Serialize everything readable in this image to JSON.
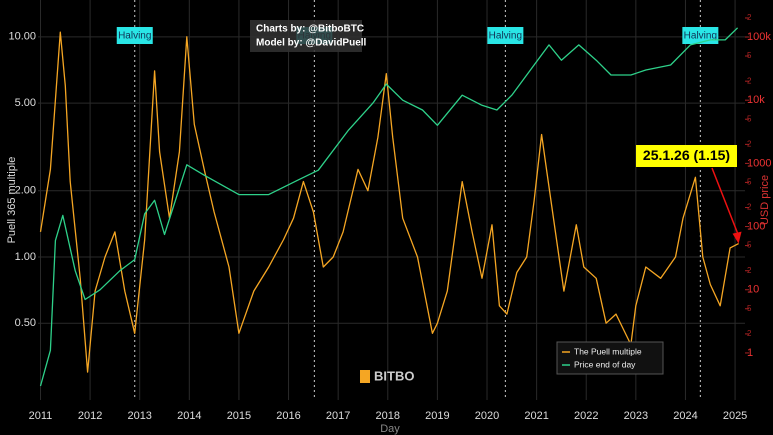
{
  "chart_data": {
    "type": "line",
    "x_label": "Day",
    "y_label": "Puell 365 multiple",
    "y2_label": "USD price",
    "credits": [
      "Charts by: @BitboBTC",
      "Model by: @DavidPuell"
    ],
    "watermark": "BITBO",
    "xlim": [
      2010.95,
      2025.2
    ],
    "xticks": [
      2011,
      2012,
      2013,
      2014,
      2015,
      2016,
      2017,
      2018,
      2019,
      2020,
      2021,
      2022,
      2023,
      2024,
      2025
    ],
    "ylim": [
      0.224,
      14.7
    ],
    "yscale": "log",
    "yticks": [
      {
        "value": 0.5,
        "label": "0.50"
      },
      {
        "value": 1,
        "label": "1.00"
      },
      {
        "value": 2,
        "label": "2.00"
      },
      {
        "value": 5,
        "label": "5.00"
      },
      {
        "value": 10,
        "label": "10.00"
      }
    ],
    "y2lim": [
      0.18,
      385000
    ],
    "y2scale": "log",
    "y2ticks": [
      1,
      2,
      5,
      10,
      {
        "value": 20,
        "label": "2"
      },
      {
        "value": 50,
        "label": "5"
      },
      100,
      {
        "value": 200,
        "label": "2"
      },
      {
        "value": 500,
        "label": "5"
      },
      1000,
      {
        "value": 2000,
        "label": "2"
      },
      {
        "value": 5000,
        "label": "5"
      },
      {
        "value": 10000,
        "label": "10k"
      },
      {
        "value": 20000,
        "label": "2"
      },
      {
        "value": 50000,
        "label": "5"
      },
      {
        "value": 100000,
        "label": "100k"
      },
      {
        "value": 200000,
        "label": "2"
      }
    ],
    "grid": true,
    "legend": "bottom-right",
    "halvings": [
      {
        "x": 2012.9,
        "label": "Halving"
      },
      {
        "x": 2016.52,
        "label": "Halving"
      },
      {
        "x": 2020.37,
        "label": "Halving"
      },
      {
        "x": 2024.3,
        "label": "Halving"
      }
    ],
    "callout": {
      "text": "25.1.26 (1.15)",
      "x": 2025.07,
      "y": 1.15
    },
    "series": [
      {
        "name": "The Puell multiple",
        "color": "#f5a623",
        "x": [
          2011.0,
          2011.2,
          2011.4,
          2011.5,
          2011.6,
          2011.8,
          2011.95,
          2012.1,
          2012.3,
          2012.5,
          2012.7,
          2012.9,
          2013.1,
          2013.3,
          2013.4,
          2013.6,
          2013.8,
          2013.95,
          2014.1,
          2014.3,
          2014.5,
          2014.8,
          2015.0,
          2015.3,
          2015.6,
          2015.9,
          2016.1,
          2016.3,
          2016.5,
          2016.7,
          2016.9,
          2017.1,
          2017.4,
          2017.6,
          2017.8,
          2017.97,
          2018.1,
          2018.3,
          2018.6,
          2018.9,
          2019.0,
          2019.2,
          2019.5,
          2019.7,
          2019.9,
          2020.1,
          2020.25,
          2020.4,
          2020.6,
          2020.8,
          2020.95,
          2021.1,
          2021.2,
          2021.4,
          2021.55,
          2021.8,
          2021.95,
          2022.2,
          2022.4,
          2022.6,
          2022.9,
          2023.0,
          2023.2,
          2023.5,
          2023.8,
          2023.95,
          2024.2,
          2024.35,
          2024.5,
          2024.7,
          2024.9,
          2025.07
        ],
        "values": [
          1.3,
          2.5,
          10.5,
          6,
          2.2,
          0.8,
          0.3,
          0.7,
          1.0,
          1.3,
          0.7,
          0.45,
          1.2,
          7,
          3,
          1.5,
          3,
          10,
          4,
          2.5,
          1.6,
          0.9,
          0.45,
          0.7,
          0.9,
          1.2,
          1.5,
          2.2,
          1.6,
          0.9,
          1.0,
          1.3,
          2.5,
          2.0,
          3.5,
          6.8,
          3.5,
          1.5,
          1.0,
          0.45,
          0.5,
          0.7,
          2.2,
          1.3,
          0.8,
          1.4,
          0.6,
          0.55,
          0.85,
          1.0,
          1.8,
          3.6,
          2.5,
          1.2,
          0.7,
          1.4,
          0.9,
          0.8,
          0.5,
          0.55,
          0.4,
          0.6,
          0.9,
          0.8,
          1.0,
          1.5,
          2.3,
          1.0,
          0.75,
          0.6,
          1.1,
          1.15
        ]
      },
      {
        "name": "Price end of day",
        "color": "#2ed18a",
        "axis": "y2",
        "x": [
          2011.0,
          2011.2,
          2011.3,
          2011.45,
          2011.7,
          2011.9,
          2012.2,
          2012.6,
          2012.9,
          2013.1,
          2013.3,
          2013.5,
          2013.95,
          2014.3,
          2015.0,
          2015.6,
          2016.2,
          2016.6,
          2017.2,
          2017.7,
          2017.97,
          2018.3,
          2018.7,
          2019.0,
          2019.5,
          2019.9,
          2020.2,
          2020.5,
          2020.95,
          2021.25,
          2021.5,
          2021.85,
          2022.2,
          2022.5,
          2022.9,
          2023.2,
          2023.7,
          2024.1,
          2024.5,
          2024.8,
          2025.05
        ],
        "values": [
          0.3,
          1.1,
          60,
          150,
          20,
          7,
          10,
          20,
          30,
          160,
          260,
          75,
          950,
          650,
          320,
          320,
          550,
          780,
          3300,
          9000,
          18000,
          10000,
          7000,
          4000,
          12000,
          8300,
          7000,
          12000,
          36000,
          75000,
          43000,
          75000,
          43000,
          25000,
          25000,
          30000,
          36000,
          75000,
          90000,
          90000,
          140000
        ]
      }
    ]
  }
}
